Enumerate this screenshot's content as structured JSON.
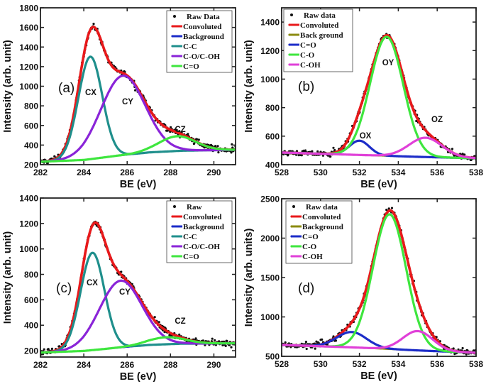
{
  "chart_data": [
    {
      "panel": "(a)",
      "type": "line",
      "xlabel": "BE (eV)",
      "ylabel": "Intensity (arb. unit)",
      "xlim": [
        282,
        291
      ],
      "ylim": [
        200,
        1800
      ],
      "xticks": [
        "282",
        "284",
        "286",
        "288",
        "290"
      ],
      "yticks": [
        "200",
        "400",
        "600",
        "800",
        "1000",
        "1200",
        "1400",
        "1600",
        "1800"
      ],
      "legend_position": "top-right",
      "legend": [
        {
          "name": "Raw Data",
          "color": "#111111",
          "kind": "dots"
        },
        {
          "name": "Convoluted",
          "color": "#e8191b",
          "kind": "line"
        },
        {
          "name": "Background",
          "color": "#1c2cc8",
          "kind": "line"
        },
        {
          "name": "C-C",
          "color": "#1f8f8c",
          "kind": "line"
        },
        {
          "name": "C-O/C-OH",
          "color": "#8a24d8",
          "kind": "line"
        },
        {
          "name": "C=O",
          "color": "#3ee63e",
          "kind": "line"
        }
      ],
      "background": [
        [
          282,
          230
        ],
        [
          284,
          248
        ],
        [
          285.5,
          290
        ],
        [
          287,
          325
        ],
        [
          288.5,
          342
        ],
        [
          291,
          352
        ]
      ],
      "components": [
        {
          "name": "C-C",
          "label": "CX",
          "center": 284.3,
          "height": 1045,
          "fwhm": 1.3,
          "color": "#1f8f8c"
        },
        {
          "name": "C-O/C-OH",
          "label": "CY",
          "center": 285.8,
          "height": 810,
          "fwhm": 2.4,
          "color": "#8a24d8"
        },
        {
          "name": "C=O",
          "label": "CZ",
          "center": 288.3,
          "height": 150,
          "fwhm": 2.0,
          "color": "#3ee63e"
        }
      ]
    },
    {
      "panel": "(b)",
      "type": "line",
      "xlabel": "BE (eV)",
      "ylabel": "Intensity (arb. unit)",
      "xlim": [
        528,
        538
      ],
      "ylim": [
        400,
        1500
      ],
      "xticks": [
        "528",
        "530",
        "532",
        "534",
        "536",
        "538"
      ],
      "yticks": [
        "400",
        "600",
        "800",
        "1000",
        "1200",
        "1400"
      ],
      "legend_position": "top-left",
      "legend": [
        {
          "name": "Raw data",
          "color": "#111111",
          "kind": "dots"
        },
        {
          "name": "Convoluted",
          "color": "#e8191b",
          "kind": "line"
        },
        {
          "name": "Back ground",
          "color": "#8b8b10",
          "kind": "line"
        },
        {
          "name": "C=O",
          "color": "#1c2cc8",
          "kind": "line"
        },
        {
          "name": "C-O",
          "color": "#3ee63e",
          "kind": "line"
        },
        {
          "name": "C-OH",
          "color": "#e040d8",
          "kind": "line"
        }
      ],
      "background": [
        [
          528,
          485
        ],
        [
          532,
          468
        ],
        [
          535,
          455
        ],
        [
          538,
          445
        ]
      ],
      "components": [
        {
          "name": "C=O",
          "label": "OX",
          "center": 532.0,
          "height": 100,
          "fwhm": 1.2,
          "color": "#1c2cc8"
        },
        {
          "name": "C-O",
          "label": "OY",
          "center": 533.4,
          "height": 835,
          "fwhm": 2.0,
          "color": "#3ee63e"
        },
        {
          "name": "C-OH",
          "label": "OZ",
          "center": 535.4,
          "height": 135,
          "fwhm": 2.0,
          "color": "#e040d8"
        }
      ]
    },
    {
      "panel": "(c)",
      "type": "line",
      "xlabel": "BE (eV)",
      "ylabel": "Intensity (arb. unit)",
      "xlim": [
        282,
        291
      ],
      "ylim": [
        150,
        1400
      ],
      "xticks": [
        "282",
        "284",
        "286",
        "288",
        "290"
      ],
      "yticks": [
        "200",
        "400",
        "600",
        "800",
        "1000",
        "1200",
        "1400"
      ],
      "legend_position": "top-right",
      "legend": [
        {
          "name": "Raw",
          "color": "#111111",
          "kind": "dots"
        },
        {
          "name": "Convoluted",
          "color": "#e8191b",
          "kind": "line"
        },
        {
          "name": "Background",
          "color": "#1c2cc8",
          "kind": "line"
        },
        {
          "name": "C-C",
          "color": "#1f8f8c",
          "kind": "line"
        },
        {
          "name": "C-O/C-OH",
          "color": "#8a24d8",
          "kind": "line"
        },
        {
          "name": "C=O",
          "color": "#3ee63e",
          "kind": "line"
        }
      ],
      "background": [
        [
          282,
          185
        ],
        [
          284,
          198
        ],
        [
          285.5,
          222
        ],
        [
          287,
          245
        ],
        [
          288.5,
          255
        ],
        [
          291,
          258
        ]
      ],
      "components": [
        {
          "name": "C-C",
          "label": "CX",
          "center": 284.4,
          "height": 765,
          "fwhm": 1.3,
          "color": "#1f8f8c"
        },
        {
          "name": "C-O/C-OH",
          "label": "CY",
          "center": 285.7,
          "height": 525,
          "fwhm": 2.3,
          "color": "#8a24d8"
        },
        {
          "name": "C=O",
          "label": "CZ",
          "center": 287.8,
          "height": 55,
          "fwhm": 2.0,
          "color": "#3ee63e"
        }
      ]
    },
    {
      "panel": "(d)",
      "type": "line",
      "xlabel": "BE (eV)",
      "ylabel": "Intensity  (arb. units)",
      "xlim": [
        528,
        538
      ],
      "ylim": [
        500,
        2500
      ],
      "xticks": [
        "528",
        "530",
        "532",
        "534",
        "536",
        "538"
      ],
      "yticks": [
        "500",
        "1000",
        "1500",
        "2000",
        "2500"
      ],
      "legend_position": "top-left",
      "legend": [
        {
          "name": "Raw data",
          "color": "#111111",
          "kind": "dots"
        },
        {
          "name": "Convoluted",
          "color": "#e8191b",
          "kind": "line"
        },
        {
          "name": "Background",
          "color": "#8b8b10",
          "kind": "line"
        },
        {
          "name": "C=O",
          "color": "#1c2cc8",
          "kind": "line"
        },
        {
          "name": "C-O",
          "color": "#3ee63e",
          "kind": "line"
        },
        {
          "name": "C-OH",
          "color": "#e040d8",
          "kind": "line"
        }
      ],
      "background": [
        [
          528,
          645
        ],
        [
          532,
          610
        ],
        [
          535,
          575
        ],
        [
          538,
          545
        ]
      ],
      "components": [
        {
          "name": "C=O",
          "label": "",
          "center": 531.6,
          "height": 195,
          "fwhm": 1.8,
          "color": "#1c2cc8"
        },
        {
          "name": "C-O",
          "label": "",
          "center": 533.55,
          "height": 1710,
          "fwhm": 2.0,
          "color": "#3ee63e"
        },
        {
          "name": "C-OH",
          "label": "",
          "center": 535.0,
          "height": 245,
          "fwhm": 1.8,
          "color": "#e040d8"
        }
      ]
    }
  ]
}
